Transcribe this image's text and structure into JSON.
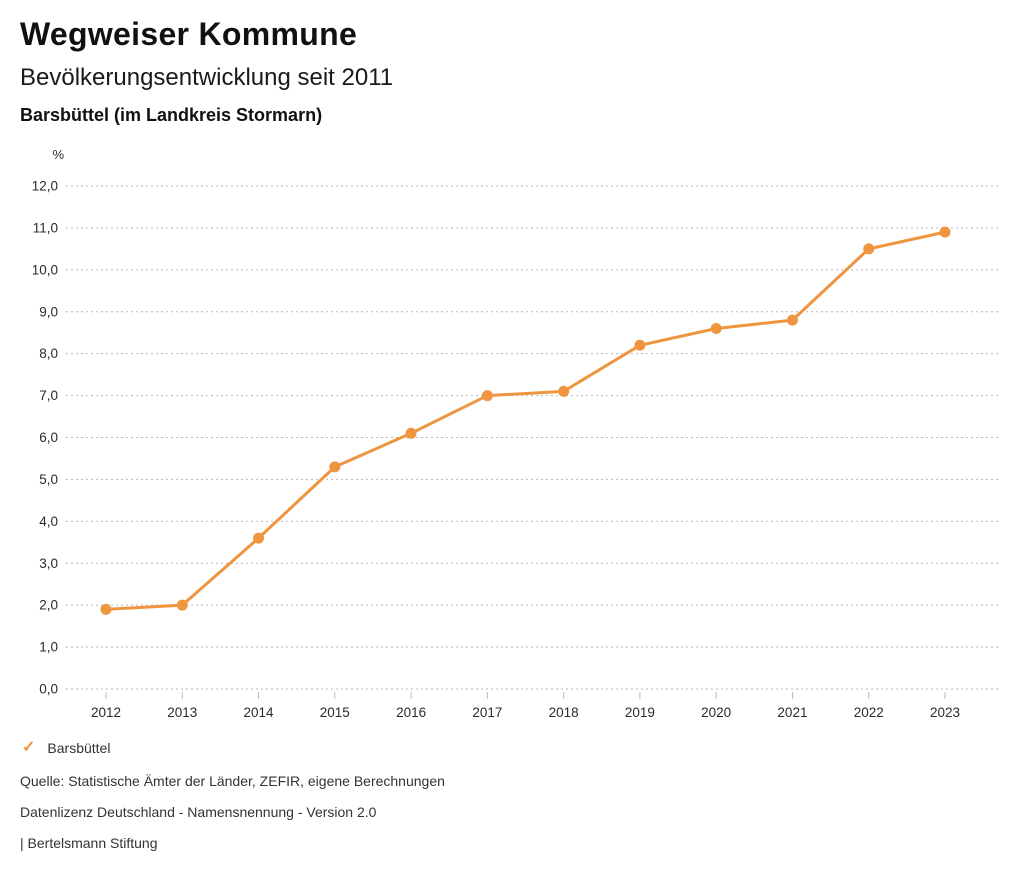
{
  "header": {
    "title": "Wegweiser Kommune",
    "subtitle": "Bevölkerungsentwicklung seit 2011",
    "region": "Barsbüttel (im Landkreis Stormarn)"
  },
  "chart_data": {
    "type": "line",
    "title": "Bevölkerungsentwicklung seit 2011",
    "unit_label": "%",
    "categories": [
      "2012",
      "2013",
      "2014",
      "2015",
      "2016",
      "2017",
      "2018",
      "2019",
      "2020",
      "2021",
      "2022",
      "2023"
    ],
    "series": [
      {
        "name": "Barsbüttel",
        "color": "#EF9540",
        "values": [
          1.9,
          2.0,
          3.6,
          5.3,
          6.1,
          7.0,
          7.1,
          8.2,
          8.6,
          8.8,
          10.5,
          10.9
        ]
      }
    ],
    "ylim": [
      0,
      12
    ],
    "y_tick_labels": [
      "0,0",
      "1,0",
      "2,0",
      "3,0",
      "4,0",
      "5,0",
      "6,0",
      "7,0",
      "8,0",
      "9,0",
      "10,0",
      "11,0",
      "12,0"
    ],
    "xlabel": "",
    "ylabel": "%",
    "grid": "horizontal-dotted",
    "legend_position": "bottom-left",
    "colors": {
      "gridline": "#b5b5b5",
      "tick": "#bdbdbd",
      "axis_text": "#2b2b2b"
    }
  },
  "legend": {
    "check_icon": "✓",
    "items": [
      {
        "label": "Barsbüttel",
        "checked": true
      }
    ]
  },
  "footer": {
    "source": "Quelle: Statistische Ämter der Länder, ZEFIR, eigene Berechnungen",
    "license": "Datenlizenz Deutschland - Namensnennung - Version 2.0",
    "attribution": "| Bertelsmann Stiftung"
  }
}
